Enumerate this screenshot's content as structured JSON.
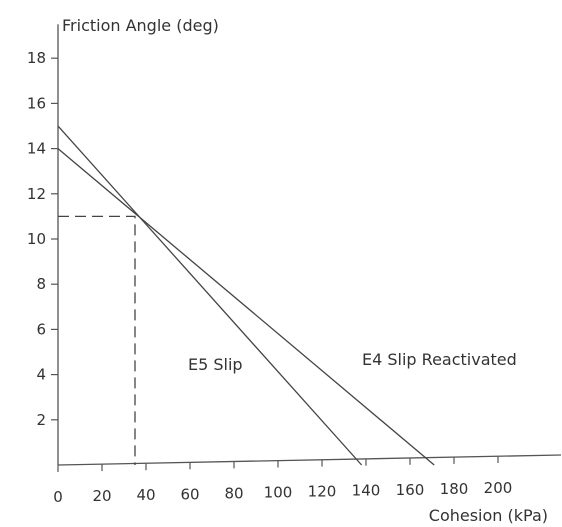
{
  "chart_data": {
    "type": "line",
    "title": "",
    "xlabel": "Cohesion (kPa)",
    "ylabel": "Friction Angle (deg)",
    "xlim": [
      0,
      215
    ],
    "ylim": [
      0,
      19.5
    ],
    "x_ticks": [
      0,
      20,
      40,
      60,
      80,
      100,
      120,
      140,
      160,
      180,
      200
    ],
    "y_ticks": [
      2,
      4,
      6,
      8,
      10,
      12,
      14,
      16,
      18
    ],
    "series": [
      {
        "name": "E5 Slip",
        "x": [
          0,
          138
        ],
        "y": [
          15,
          0
        ]
      },
      {
        "name": "E4 Slip Reactivated",
        "x": [
          0,
          171
        ],
        "y": [
          14,
          0
        ]
      }
    ],
    "annotations": [
      {
        "type": "dashed-guide",
        "x": 35,
        "y": 11
      }
    ],
    "grid": false,
    "legend": "none"
  }
}
